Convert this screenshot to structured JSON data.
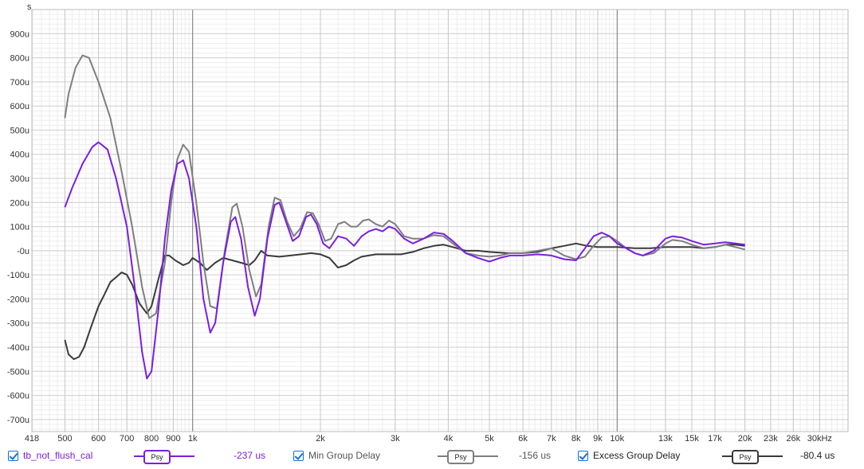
{
  "chart_data": {
    "type": "line",
    "xscale": "log",
    "xlim": [
      418,
      35000
    ],
    "ylim": [
      -750,
      1000
    ],
    "yunit_label": "s",
    "x_ticks": [
      {
        "v": 418,
        "label": "418"
      },
      {
        "v": 500,
        "label": "500"
      },
      {
        "v": 600,
        "label": "600"
      },
      {
        "v": 700,
        "label": "700"
      },
      {
        "v": 800,
        "label": "800"
      },
      {
        "v": 900,
        "label": "900"
      },
      {
        "v": 1000,
        "label": "1k"
      },
      {
        "v": 2000,
        "label": "2k"
      },
      {
        "v": 3000,
        "label": "3k"
      },
      {
        "v": 4000,
        "label": "4k"
      },
      {
        "v": 5000,
        "label": "5k"
      },
      {
        "v": 6000,
        "label": "6k"
      },
      {
        "v": 7000,
        "label": "7k"
      },
      {
        "v": 8000,
        "label": "8k"
      },
      {
        "v": 9000,
        "label": "9k"
      },
      {
        "v": 10000,
        "label": "10k"
      },
      {
        "v": 13000,
        "label": "13k"
      },
      {
        "v": 15000,
        "label": "15k"
      },
      {
        "v": 17000,
        "label": "17k"
      },
      {
        "v": 20000,
        "label": "20k"
      },
      {
        "v": 23000,
        "label": "23k"
      },
      {
        "v": 26000,
        "label": "26k"
      },
      {
        "v": 30000,
        "label": "30kHz"
      }
    ],
    "y_ticks": [
      {
        "v": 900,
        "label": "900u"
      },
      {
        "v": 800,
        "label": "800u"
      },
      {
        "v": 700,
        "label": "700u"
      },
      {
        "v": 600,
        "label": "600u"
      },
      {
        "v": 500,
        "label": "500u"
      },
      {
        "v": 400,
        "label": "400u"
      },
      {
        "v": 300,
        "label": "300u"
      },
      {
        "v": 200,
        "label": "200u"
      },
      {
        "v": 100,
        "label": "100u"
      },
      {
        "v": 0,
        "label": "-0u"
      },
      {
        "v": -100,
        "label": "-100u"
      },
      {
        "v": -200,
        "label": "-200u"
      },
      {
        "v": -300,
        "label": "-300u"
      },
      {
        "v": -400,
        "label": "-400u"
      },
      {
        "v": -500,
        "label": "-500u"
      },
      {
        "v": -600,
        "label": "-600u"
      },
      {
        "v": -700,
        "label": "-700u"
      }
    ],
    "grid": true,
    "series": [
      {
        "name": "tb_not_flush_cal",
        "color": "#7a1fe0",
        "value_label": "-237 us",
        "points": [
          [
            500,
            180
          ],
          [
            520,
            260
          ],
          [
            550,
            360
          ],
          [
            580,
            430
          ],
          [
            600,
            450
          ],
          [
            630,
            420
          ],
          [
            660,
            300
          ],
          [
            700,
            100
          ],
          [
            730,
            -150
          ],
          [
            760,
            -420
          ],
          [
            780,
            -530
          ],
          [
            800,
            -500
          ],
          [
            830,
            -250
          ],
          [
            860,
            50
          ],
          [
            890,
            250
          ],
          [
            920,
            360
          ],
          [
            950,
            375
          ],
          [
            980,
            300
          ],
          [
            1020,
            100
          ],
          [
            1060,
            -200
          ],
          [
            1100,
            -340
          ],
          [
            1130,
            -300
          ],
          [
            1180,
            -50
          ],
          [
            1230,
            120
          ],
          [
            1260,
            140
          ],
          [
            1300,
            50
          ],
          [
            1350,
            -150
          ],
          [
            1400,
            -270
          ],
          [
            1440,
            -200
          ],
          [
            1500,
            50
          ],
          [
            1560,
            190
          ],
          [
            1600,
            200
          ],
          [
            1660,
            120
          ],
          [
            1720,
            40
          ],
          [
            1780,
            60
          ],
          [
            1850,
            140
          ],
          [
            1900,
            150
          ],
          [
            1960,
            110
          ],
          [
            2030,
            30
          ],
          [
            2100,
            10
          ],
          [
            2200,
            60
          ],
          [
            2300,
            50
          ],
          [
            2400,
            20
          ],
          [
            2500,
            60
          ],
          [
            2600,
            80
          ],
          [
            2700,
            90
          ],
          [
            2800,
            80
          ],
          [
            2900,
            100
          ],
          [
            3000,
            90
          ],
          [
            3150,
            50
          ],
          [
            3300,
            30
          ],
          [
            3500,
            50
          ],
          [
            3700,
            75
          ],
          [
            3900,
            70
          ],
          [
            4100,
            40
          ],
          [
            4400,
            -10
          ],
          [
            4700,
            -30
          ],
          [
            5000,
            -45
          ],
          [
            5300,
            -30
          ],
          [
            5600,
            -20
          ],
          [
            6000,
            -20
          ],
          [
            6500,
            -15
          ],
          [
            7000,
            -20
          ],
          [
            7500,
            -35
          ],
          [
            8000,
            -40
          ],
          [
            8400,
            10
          ],
          [
            8800,
            60
          ],
          [
            9200,
            75
          ],
          [
            9600,
            60
          ],
          [
            10000,
            30
          ],
          [
            10500,
            10
          ],
          [
            11000,
            -10
          ],
          [
            11500,
            -20
          ],
          [
            12200,
            0
          ],
          [
            13000,
            50
          ],
          [
            13500,
            60
          ],
          [
            14200,
            55
          ],
          [
            15000,
            40
          ],
          [
            16000,
            25
          ],
          [
            17000,
            30
          ],
          [
            18000,
            35
          ],
          [
            19000,
            30
          ],
          [
            20000,
            25
          ]
        ]
      },
      {
        "name": "Min Group Delay",
        "color": "#7f7f7f",
        "value_label": "-156 us",
        "points": [
          [
            500,
            550
          ],
          [
            510,
            650
          ],
          [
            530,
            760
          ],
          [
            550,
            810
          ],
          [
            570,
            800
          ],
          [
            600,
            700
          ],
          [
            640,
            550
          ],
          [
            680,
            330
          ],
          [
            720,
            100
          ],
          [
            760,
            -150
          ],
          [
            790,
            -280
          ],
          [
            820,
            -260
          ],
          [
            860,
            -50
          ],
          [
            890,
            200
          ],
          [
            920,
            380
          ],
          [
            950,
            440
          ],
          [
            980,
            410
          ],
          [
            1020,
            200
          ],
          [
            1060,
            -50
          ],
          [
            1100,
            -230
          ],
          [
            1140,
            -240
          ],
          [
            1190,
            0
          ],
          [
            1240,
            180
          ],
          [
            1270,
            195
          ],
          [
            1310,
            100
          ],
          [
            1360,
            -80
          ],
          [
            1410,
            -190
          ],
          [
            1450,
            -140
          ],
          [
            1510,
            100
          ],
          [
            1560,
            220
          ],
          [
            1610,
            210
          ],
          [
            1670,
            120
          ],
          [
            1730,
            60
          ],
          [
            1790,
            90
          ],
          [
            1860,
            160
          ],
          [
            1920,
            155
          ],
          [
            1980,
            110
          ],
          [
            2050,
            40
          ],
          [
            2120,
            50
          ],
          [
            2200,
            110
          ],
          [
            2280,
            120
          ],
          [
            2360,
            100
          ],
          [
            2440,
            100
          ],
          [
            2520,
            125
          ],
          [
            2600,
            130
          ],
          [
            2700,
            110
          ],
          [
            2800,
            100
          ],
          [
            2900,
            125
          ],
          [
            3000,
            110
          ],
          [
            3150,
            60
          ],
          [
            3300,
            50
          ],
          [
            3500,
            50
          ],
          [
            3700,
            65
          ],
          [
            3900,
            60
          ],
          [
            4100,
            30
          ],
          [
            4400,
            -10
          ],
          [
            4700,
            -20
          ],
          [
            5000,
            -25
          ],
          [
            5300,
            -20
          ],
          [
            5600,
            -10
          ],
          [
            6000,
            -10
          ],
          [
            6500,
            0
          ],
          [
            7000,
            10
          ],
          [
            7500,
            -20
          ],
          [
            8000,
            -35
          ],
          [
            8400,
            -25
          ],
          [
            8800,
            20
          ],
          [
            9200,
            55
          ],
          [
            9600,
            60
          ],
          [
            10000,
            40
          ],
          [
            10500,
            10
          ],
          [
            11000,
            -10
          ],
          [
            11500,
            -20
          ],
          [
            12200,
            -10
          ],
          [
            13000,
            30
          ],
          [
            13500,
            45
          ],
          [
            14200,
            40
          ],
          [
            15000,
            25
          ],
          [
            16000,
            10
          ],
          [
            17000,
            15
          ],
          [
            18000,
            25
          ],
          [
            19000,
            15
          ],
          [
            20000,
            5
          ]
        ]
      },
      {
        "name": "Excess Group Delay",
        "color": "#3a3a3a",
        "value_label": "-80.4 us",
        "points": [
          [
            500,
            -370
          ],
          [
            510,
            -430
          ],
          [
            525,
            -450
          ],
          [
            540,
            -440
          ],
          [
            555,
            -400
          ],
          [
            575,
            -320
          ],
          [
            600,
            -230
          ],
          [
            620,
            -180
          ],
          [
            640,
            -130
          ],
          [
            660,
            -110
          ],
          [
            680,
            -90
          ],
          [
            700,
            -100
          ],
          [
            720,
            -140
          ],
          [
            750,
            -220
          ],
          [
            780,
            -260
          ],
          [
            800,
            -230
          ],
          [
            830,
            -120
          ],
          [
            860,
            -20
          ],
          [
            880,
            -20
          ],
          [
            910,
            -40
          ],
          [
            950,
            -60
          ],
          [
            980,
            -50
          ],
          [
            1000,
            -30
          ],
          [
            1040,
            -50
          ],
          [
            1080,
            -80
          ],
          [
            1130,
            -50
          ],
          [
            1180,
            -30
          ],
          [
            1240,
            -40
          ],
          [
            1300,
            -50
          ],
          [
            1360,
            -60
          ],
          [
            1400,
            -40
          ],
          [
            1450,
            0
          ],
          [
            1500,
            -20
          ],
          [
            1600,
            -25
          ],
          [
            1700,
            -20
          ],
          [
            1800,
            -15
          ],
          [
            1900,
            -10
          ],
          [
            2000,
            -15
          ],
          [
            2100,
            -30
          ],
          [
            2200,
            -70
          ],
          [
            2300,
            -60
          ],
          [
            2400,
            -40
          ],
          [
            2500,
            -25
          ],
          [
            2700,
            -15
          ],
          [
            2900,
            -15
          ],
          [
            3100,
            -15
          ],
          [
            3300,
            -5
          ],
          [
            3500,
            10
          ],
          [
            3700,
            20
          ],
          [
            3900,
            25
          ],
          [
            4100,
            15
          ],
          [
            4400,
            0
          ],
          [
            4700,
            0
          ],
          [
            5000,
            -5
          ],
          [
            5500,
            -10
          ],
          [
            6000,
            -10
          ],
          [
            6500,
            -5
          ],
          [
            7000,
            10
          ],
          [
            7500,
            20
          ],
          [
            8000,
            30
          ],
          [
            8500,
            20
          ],
          [
            9000,
            15
          ],
          [
            9500,
            15
          ],
          [
            10000,
            15
          ],
          [
            11000,
            10
          ],
          [
            12000,
            10
          ],
          [
            13000,
            15
          ],
          [
            14000,
            15
          ],
          [
            15000,
            15
          ],
          [
            16000,
            10
          ],
          [
            17000,
            15
          ],
          [
            18000,
            25
          ],
          [
            19000,
            25
          ],
          [
            20000,
            20
          ]
        ]
      }
    ]
  },
  "legend": {
    "items": [
      {
        "label": "tb_not_flush_cal",
        "psy": "Psy",
        "value": "-237 us",
        "color": "#7a1fe0"
      },
      {
        "label": "Min Group Delay",
        "psy": "Psy",
        "value": "-156 us",
        "color": "#7f7f7f"
      },
      {
        "label": "Excess Group Delay",
        "psy": "Psy",
        "value": "-80.4 us",
        "color": "#3a3a3a"
      }
    ]
  }
}
